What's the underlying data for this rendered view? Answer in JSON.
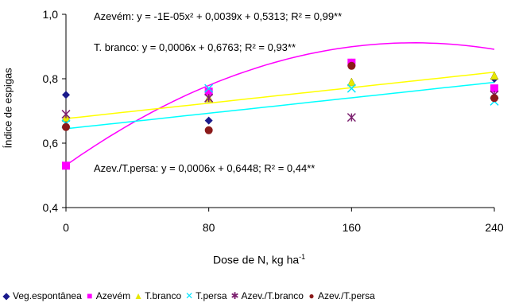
{
  "chart_data": {
    "type": "scatter",
    "title": "",
    "xlabel": "Dose de N, kg ha",
    "xlabel_sup": "-1",
    "ylabel": "Índice de espigas",
    "xlim": [
      0,
      240
    ],
    "ylim": [
      0.4,
      1.0
    ],
    "x_ticks": [
      "0",
      "80",
      "160",
      "240"
    ],
    "y_ticks": [
      "0,4",
      "0,6",
      "0,8",
      "1,0"
    ],
    "grid": false,
    "legend_position": "bottom",
    "series": [
      {
        "name": "Veg.espontânea",
        "marker": "diamond",
        "color": "#1a1a8c",
        "x": [
          0,
          80,
          160,
          240
        ],
        "y": [
          0.75,
          0.67,
          0.85,
          0.8
        ]
      },
      {
        "name": "Azevém",
        "marker": "square",
        "color": "#ff00ff",
        "x": [
          0,
          80,
          160,
          240
        ],
        "y": [
          0.53,
          0.76,
          0.85,
          0.77
        ]
      },
      {
        "name": "T.branco",
        "marker": "triangle",
        "color": "#e8e800",
        "x": [
          0,
          80,
          160,
          240
        ],
        "y": [
          0.68,
          0.74,
          0.79,
          0.81
        ]
      },
      {
        "name": "T.persa",
        "marker": "x",
        "color": "#00e5ff",
        "x": [
          0,
          80,
          160,
          240
        ],
        "y": [
          0.66,
          0.77,
          0.77,
          0.73
        ]
      },
      {
        "name": "Azev./T.branco",
        "marker": "star",
        "color": "#7b1f6e",
        "x": [
          0,
          80,
          160,
          240
        ],
        "y": [
          0.69,
          0.74,
          0.68,
          0.75
        ]
      },
      {
        "name": "Azev./T.persa",
        "marker": "circle",
        "color": "#8b1a1a",
        "x": [
          0,
          80,
          160,
          240
        ],
        "y": [
          0.65,
          0.64,
          0.84,
          0.74
        ]
      }
    ],
    "fits": [
      {
        "series": "Azevém",
        "type": "quadratic",
        "color": "#ff00ff",
        "coef": [
          -1e-05,
          0.0039,
          0.5313
        ]
      },
      {
        "series": "T.branco",
        "type": "linear",
        "color": "#ffff00",
        "coef": [
          0.0006,
          0.6763
        ]
      },
      {
        "series": "Azev./T.persa",
        "type": "linear",
        "color": "#00ffff",
        "coef": [
          0.0006,
          0.6448
        ]
      }
    ],
    "annotations": {
      "azevem": "Azevém: y = -1E-05x² + 0,0039x + 0,5313; R² = 0,99**",
      "tbranco": "T. branco: y = 0,0006x + 0,6763; R² = 0,93**",
      "azevtpersa": "Azev./T.persa: y = 0,0006x + 0,6448; R² = 0,44**"
    }
  }
}
